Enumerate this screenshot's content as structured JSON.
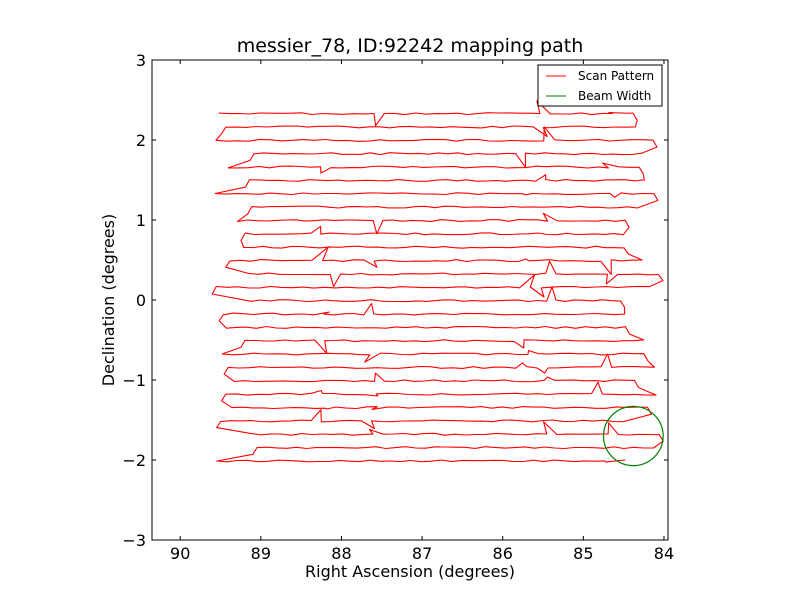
{
  "chart_data": {
    "type": "line",
    "title": "messier_78, ID:92242 mapping path",
    "xlabel": "Right Ascension (degrees)",
    "ylabel": "Declination (degrees)",
    "xlim": [
      90.35,
      83.95
    ],
    "ylim": [
      -3,
      3
    ],
    "x_reversed": true,
    "xticks": [
      90,
      89,
      88,
      87,
      86,
      85,
      84
    ],
    "yticks": [
      3,
      2,
      1,
      0,
      -1,
      -2,
      -3
    ],
    "xtick_labels": [
      "90",
      "89",
      "88",
      "87",
      "86",
      "85",
      "84"
    ],
    "ytick_labels": [
      "3",
      "2",
      "1",
      "0",
      "−1",
      "−2",
      "−3"
    ],
    "grid": false,
    "legend_position": "top-right",
    "legend": [
      {
        "label": "Scan Pattern",
        "color": "#ff0000"
      },
      {
        "label": "Beam Width",
        "color": "#008000"
      }
    ],
    "scan_pattern": {
      "color": "#ff0000",
      "dec_start": 2.33,
      "dec_step": -0.167,
      "n_rows": 27,
      "ra_left_range": [
        89.0,
        89.6
      ],
      "ra_right_range": [
        84.05,
        84.55
      ],
      "jitter_dec": 0.012,
      "spike_ra": [
        88.2,
        87.6,
        85.7,
        85.5,
        84.7
      ]
    },
    "beam_width": {
      "color": "#008000",
      "center_ra": 84.38,
      "center_dec": -1.7,
      "radius_deg": 0.37
    }
  }
}
